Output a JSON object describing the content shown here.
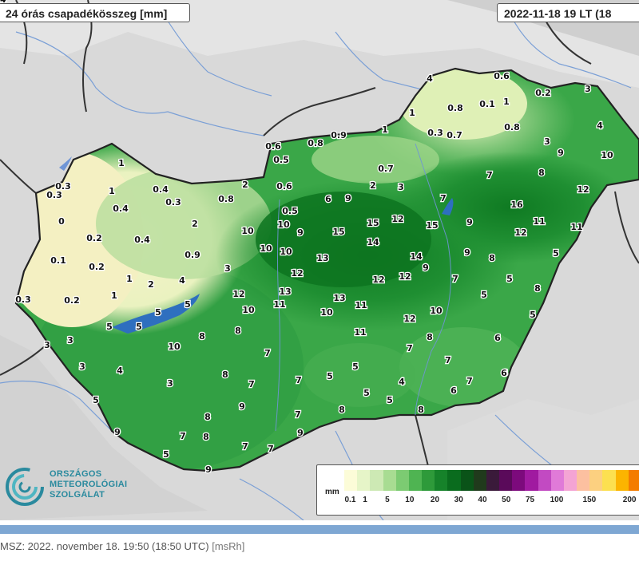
{
  "header": {
    "title": "24 órás csapadékösszeg [mm]",
    "datetime": "2022-11-18 19 LT (18"
  },
  "legend": {
    "unit": "mm",
    "ticks": [
      "0.1",
      "1",
      "5",
      "10",
      "20",
      "30",
      "40",
      "50",
      "75",
      "100",
      "150",
      "200"
    ],
    "colors": [
      "#fcfcd8",
      "#e6f5c8",
      "#cde9b4",
      "#a8dc92",
      "#7ccb72",
      "#4fb452",
      "#2e9a3a",
      "#16822a",
      "#0a6c1e",
      "#0a5318",
      "#203a1c",
      "#3a1a3a",
      "#5a0a5a",
      "#7c0a7c",
      "#a01aa0",
      "#c24ac2",
      "#e07ad8",
      "#f4a4d4",
      "#fcc0a0",
      "#fcd080",
      "#fce050",
      "#fcb400",
      "#f47c00"
    ]
  },
  "logo": {
    "line1": "ORSZÁGOS",
    "line2": "METEOROLÓGIAI",
    "line3": "SZOLGÁLAT"
  },
  "footer": {
    "text": "MSZ: 2022. november 18. 19:50 (18:50  UTC)",
    "source": "[msRh]"
  },
  "map_values": [
    {
      "v": "0.6"
    },
    {
      "v": "4"
    },
    {
      "v": "0.8"
    },
    {
      "v": "0.1"
    },
    {
      "v": "1"
    },
    {
      "v": "0.2"
    },
    {
      "v": "3"
    },
    {
      "v": "1"
    },
    {
      "v": "0.3"
    },
    {
      "v": "0.7"
    },
    {
      "v": "0.8"
    },
    {
      "v": "4"
    },
    {
      "v": "1"
    },
    {
      "v": "0.9"
    },
    {
      "v": "0.8"
    },
    {
      "v": "0.6"
    },
    {
      "v": "0.5"
    },
    {
      "v": "3"
    },
    {
      "v": "9"
    },
    {
      "v": "10"
    },
    {
      "v": "1"
    },
    {
      "v": "0.7"
    },
    {
      "v": "7"
    },
    {
      "v": "8"
    },
    {
      "v": "0.3"
    },
    {
      "v": "0.3"
    },
    {
      "v": "0.4"
    },
    {
      "v": "1"
    },
    {
      "v": "0.4"
    },
    {
      "v": "0.3"
    },
    {
      "v": "0.8"
    },
    {
      "v": "2"
    },
    {
      "v": "2"
    },
    {
      "v": "0.6"
    },
    {
      "v": "3"
    },
    {
      "v": "7"
    },
    {
      "v": "9"
    },
    {
      "v": "16"
    },
    {
      "v": "12"
    },
    {
      "v": "6"
    },
    {
      "v": "0.5"
    },
    {
      "v": "9"
    },
    {
      "v": "0"
    },
    {
      "v": "2"
    },
    {
      "v": "10"
    },
    {
      "v": "10"
    },
    {
      "v": "9"
    },
    {
      "v": "15"
    },
    {
      "v": "15"
    },
    {
      "v": "12"
    },
    {
      "v": "15"
    },
    {
      "v": "11"
    },
    {
      "v": "11"
    },
    {
      "v": "12"
    },
    {
      "v": "0.2"
    },
    {
      "v": "0.4"
    },
    {
      "v": "10"
    },
    {
      "v": "14"
    },
    {
      "v": "9"
    },
    {
      "v": "5"
    },
    {
      "v": "0.1"
    },
    {
      "v": "0.9"
    },
    {
      "v": "10"
    },
    {
      "v": "13"
    },
    {
      "v": "14"
    },
    {
      "v": "8"
    },
    {
      "v": "0.2"
    },
    {
      "v": "3"
    },
    {
      "v": "12"
    },
    {
      "v": "9"
    },
    {
      "v": "1"
    },
    {
      "v": "2"
    },
    {
      "v": "4"
    },
    {
      "v": "12"
    },
    {
      "v": "12"
    },
    {
      "v": "7"
    },
    {
      "v": "5"
    },
    {
      "v": "0.3"
    },
    {
      "v": "0.2"
    },
    {
      "v": "1"
    },
    {
      "v": "12"
    },
    {
      "v": "13"
    },
    {
      "v": "13"
    },
    {
      "v": "5"
    },
    {
      "v": "8"
    },
    {
      "v": "5"
    },
    {
      "v": "11"
    },
    {
      "v": "11"
    },
    {
      "v": "10"
    },
    {
      "v": "10"
    },
    {
      "v": "5"
    },
    {
      "v": "5"
    },
    {
      "v": "11"
    },
    {
      "v": "12"
    },
    {
      "v": "5"
    },
    {
      "v": "5"
    },
    {
      "v": "8"
    },
    {
      "v": "10"
    },
    {
      "v": "3"
    },
    {
      "v": "3"
    },
    {
      "v": "10"
    },
    {
      "v": "8"
    },
    {
      "v": "8"
    },
    {
      "v": "6"
    },
    {
      "v": "7"
    },
    {
      "v": "7"
    },
    {
      "v": "3"
    },
    {
      "v": "4"
    },
    {
      "v": "8"
    },
    {
      "v": "5"
    },
    {
      "v": "7"
    },
    {
      "v": "6"
    },
    {
      "v": "5"
    },
    {
      "v": "7"
    },
    {
      "v": "7"
    },
    {
      "v": "3"
    },
    {
      "v": "7"
    },
    {
      "v": "5"
    },
    {
      "v": "4"
    },
    {
      "v": "6"
    },
    {
      "v": "7"
    },
    {
      "v": "9"
    },
    {
      "v": "8"
    },
    {
      "v": "5"
    },
    {
      "v": "5"
    },
    {
      "v": "8"
    },
    {
      "v": "8"
    },
    {
      "v": "6"
    },
    {
      "v": "9"
    },
    {
      "v": "7"
    },
    {
      "v": "8"
    },
    {
      "v": "7"
    },
    {
      "v": "7"
    },
    {
      "v": "9"
    },
    {
      "v": "5"
    },
    {
      "v": "9"
    },
    {
      "v": "14"
    }
  ]
}
